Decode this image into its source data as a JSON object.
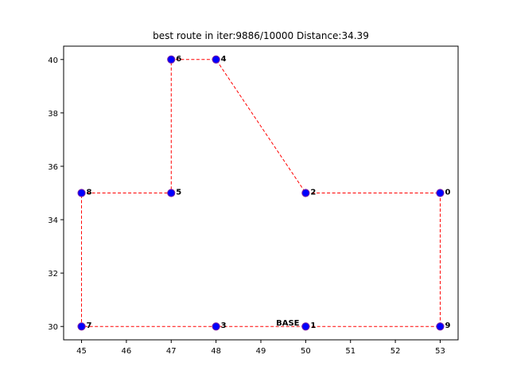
{
  "chart_data": {
    "type": "scatter",
    "title": "best route in iter:9886/10000 Distance:34.39",
    "xlabel": "",
    "ylabel": "",
    "xlim": [
      44.6,
      53.4
    ],
    "ylim": [
      29.5,
      40.5
    ],
    "xticks": [
      45,
      46,
      47,
      48,
      49,
      50,
      51,
      52,
      53
    ],
    "yticks": [
      30,
      32,
      34,
      36,
      38,
      40
    ],
    "grid": false,
    "colors": {
      "point": "#0000ff",
      "point_edge": "#7b1fa2",
      "route": "#ff0000",
      "axis": "#000000"
    },
    "points": [
      {
        "label": "0",
        "x": 53,
        "y": 35
      },
      {
        "label": "1",
        "x": 50,
        "y": 30
      },
      {
        "label": "2",
        "x": 50,
        "y": 35
      },
      {
        "label": "3",
        "x": 48,
        "y": 30
      },
      {
        "label": "4",
        "x": 48,
        "y": 40
      },
      {
        "label": "5",
        "x": 47,
        "y": 35
      },
      {
        "label": "6",
        "x": 47,
        "y": 40
      },
      {
        "label": "7",
        "x": 45,
        "y": 30
      },
      {
        "label": "8",
        "x": 45,
        "y": 35
      },
      {
        "label": "9",
        "x": 53,
        "y": 30
      }
    ],
    "route": [
      [
        53,
        35
      ],
      [
        53,
        30
      ],
      [
        50,
        30
      ],
      [
        48,
        30
      ],
      [
        45,
        30
      ],
      [
        45,
        35
      ],
      [
        47,
        35
      ],
      [
        47,
        40
      ],
      [
        48,
        40
      ],
      [
        50,
        35
      ],
      [
        53,
        35
      ]
    ],
    "annotations": [
      {
        "text": "BASE",
        "x": 49.6,
        "y": 30
      }
    ]
  }
}
